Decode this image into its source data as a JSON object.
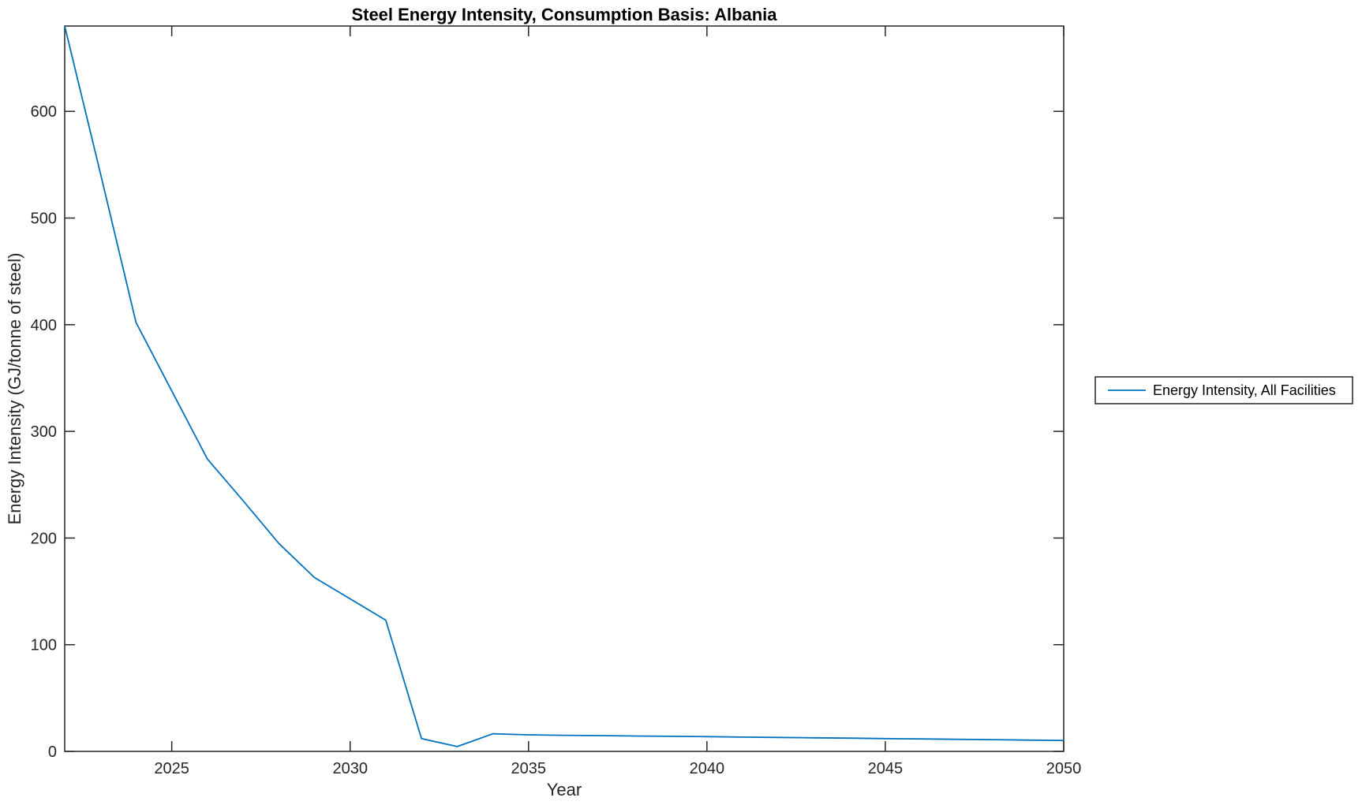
{
  "window": {
    "background": "#ffffff"
  },
  "chart_data": {
    "type": "line",
    "title": "Steel Energy Intensity, Consumption Basis: Albania",
    "xlabel": "Year",
    "ylabel": "Energy Intensity (GJ/tonne of steel)",
    "xlim": [
      2022,
      2050
    ],
    "ylim": [
      0,
      680
    ],
    "x_ticks": [
      2025,
      2030,
      2035,
      2040,
      2045,
      2050
    ],
    "y_ticks": [
      0,
      100,
      200,
      300,
      400,
      500,
      600
    ],
    "grid": false,
    "box": true,
    "tick_direction": "in",
    "colors": {
      "line": "#0072BD",
      "axis": "#262626",
      "title": "#000000"
    },
    "legend": {
      "position": "outside-right",
      "border_color": "#262626",
      "entries": [
        "Energy Intensity, All Facilities"
      ]
    },
    "series": [
      {
        "name": "Energy Intensity, All Facilities",
        "x": [
          2022,
          2023,
          2024,
          2025,
          2026,
          2027,
          2028,
          2029,
          2030,
          2031,
          2032,
          2033,
          2034,
          2035,
          2036,
          2037,
          2038,
          2039,
          2040,
          2041,
          2042,
          2043,
          2044,
          2045,
          2046,
          2047,
          2048,
          2049,
          2050
        ],
        "y": [
          680,
          542,
          402,
          338,
          274,
          235,
          195,
          163,
          143,
          123,
          12,
          4.5,
          16.5,
          15.5,
          15.1,
          14.8,
          14.4,
          14.1,
          13.8,
          13.4,
          13.1,
          12.7,
          12.4,
          12,
          11.7,
          11.3,
          11,
          10.6,
          10.3
        ]
      }
    ]
  }
}
